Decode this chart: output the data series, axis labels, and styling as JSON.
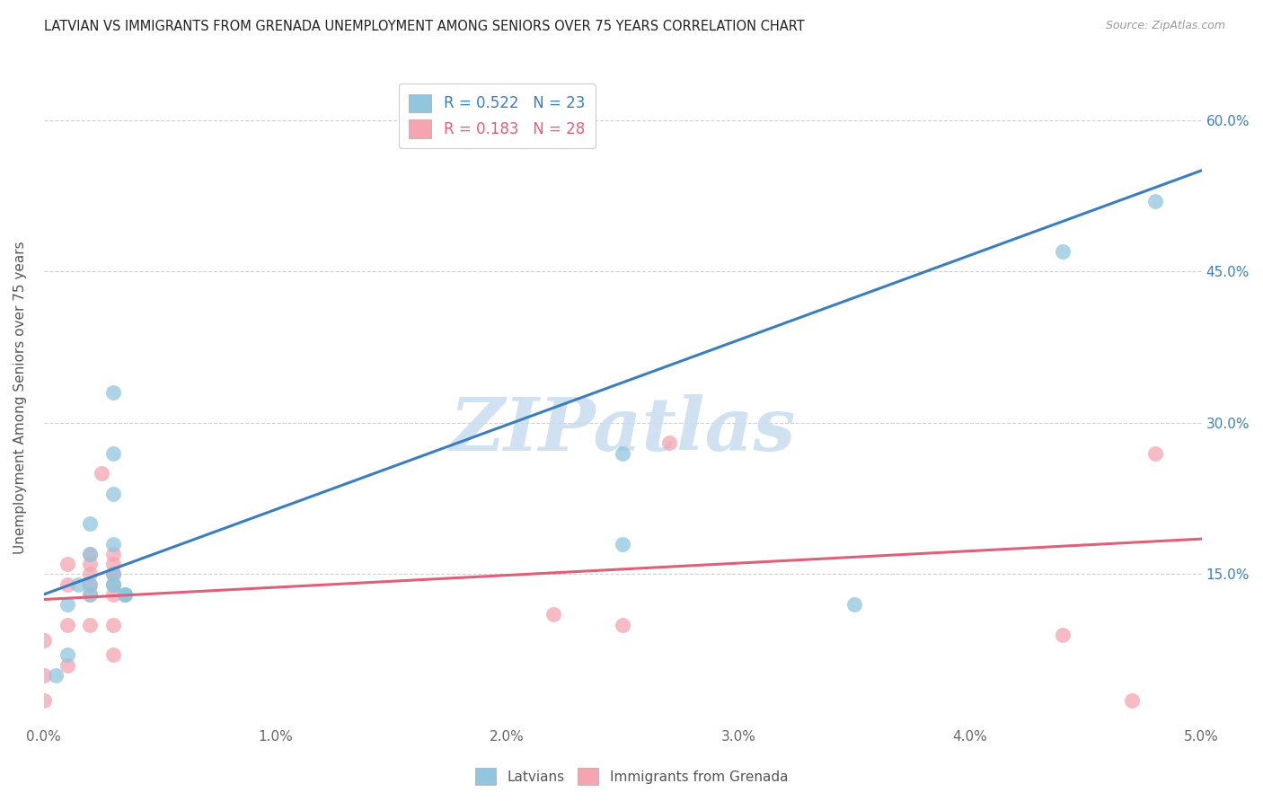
{
  "title": "LATVIAN VS IMMIGRANTS FROM GRENADA UNEMPLOYMENT AMONG SENIORS OVER 75 YEARS CORRELATION CHART",
  "source": "Source: ZipAtlas.com",
  "ylabel": "Unemployment Among Seniors over 75 years",
  "xlim": [
    0.0,
    0.05
  ],
  "ylim": [
    0.0,
    0.65
  ],
  "xticks": [
    0.0,
    0.01,
    0.02,
    0.03,
    0.04,
    0.05
  ],
  "yticks": [
    0.0,
    0.15,
    0.3,
    0.45,
    0.6
  ],
  "xticklabels": [
    "0.0%",
    "1.0%",
    "2.0%",
    "3.0%",
    "4.0%",
    "5.0%"
  ],
  "right_yticklabels": [
    "",
    "15.0%",
    "30.0%",
    "45.0%",
    "60.0%"
  ],
  "latvian_color": "#92c5de",
  "grenada_color": "#f4a5b0",
  "latvian_line_color": "#3a7ebf",
  "grenada_line_color": "#e0607a",
  "latvian_R": 0.522,
  "latvian_N": 23,
  "grenada_R": 0.183,
  "grenada_N": 28,
  "latvian_x": [
    0.0005,
    0.001,
    0.001,
    0.0015,
    0.002,
    0.002,
    0.002,
    0.002,
    0.003,
    0.003,
    0.003,
    0.003,
    0.003,
    0.003,
    0.003,
    0.0035,
    0.0035,
    0.0035,
    0.025,
    0.025,
    0.035,
    0.044,
    0.048
  ],
  "latvian_y": [
    0.05,
    0.07,
    0.12,
    0.14,
    0.13,
    0.14,
    0.17,
    0.2,
    0.14,
    0.14,
    0.15,
    0.18,
    0.23,
    0.27,
    0.33,
    0.13,
    0.13,
    0.13,
    0.18,
    0.27,
    0.12,
    0.47,
    0.52
  ],
  "grenada_x": [
    0.0,
    0.0,
    0.0,
    0.001,
    0.001,
    0.001,
    0.001,
    0.002,
    0.002,
    0.002,
    0.002,
    0.002,
    0.002,
    0.0025,
    0.003,
    0.003,
    0.003,
    0.003,
    0.003,
    0.003,
    0.003,
    0.003,
    0.022,
    0.025,
    0.027,
    0.044,
    0.047,
    0.048
  ],
  "grenada_y": [
    0.025,
    0.05,
    0.085,
    0.06,
    0.1,
    0.14,
    0.16,
    0.1,
    0.13,
    0.14,
    0.15,
    0.16,
    0.17,
    0.25,
    0.07,
    0.1,
    0.13,
    0.14,
    0.15,
    0.15,
    0.16,
    0.17,
    0.11,
    0.1,
    0.28,
    0.09,
    0.025,
    0.27
  ],
  "latvian_trend_y0": 0.13,
  "latvian_trend_y1": 0.55,
  "grenada_trend_y0": 0.125,
  "grenada_trend_y1": 0.185,
  "watermark_text": "ZIPatlas",
  "watermark_color": "#c8dcf0",
  "background_color": "#ffffff",
  "grid_color": "#d0d0d0"
}
